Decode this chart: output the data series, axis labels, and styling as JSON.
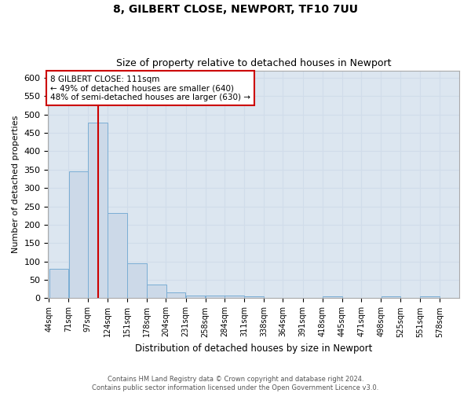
{
  "title": "8, GILBERT CLOSE, NEWPORT, TF10 7UU",
  "subtitle": "Size of property relative to detached houses in Newport",
  "xlabel": "Distribution of detached houses by size in Newport",
  "ylabel": "Number of detached properties",
  "annotation_lines": [
    "8 GILBERT CLOSE: 111sqm",
    "← 49% of detached houses are smaller (640)",
    "48% of semi-detached houses are larger (630) →"
  ],
  "property_size": 111,
  "bin_edges": [
    44,
    71,
    97,
    124,
    151,
    178,
    204,
    231,
    258,
    284,
    311,
    338,
    364,
    391,
    418,
    445,
    471,
    498,
    525,
    551,
    578
  ],
  "bar_heights": [
    80,
    345,
    478,
    233,
    95,
    37,
    16,
    8,
    8,
    8,
    5,
    0,
    0,
    0,
    5,
    0,
    0,
    5,
    0,
    5
  ],
  "bar_color": "#ccd9e8",
  "bar_edge_color": "#7aadd4",
  "redline_color": "#cc0000",
  "annotation_box_edge_color": "#cc0000",
  "grid_color": "#d0dcea",
  "background_color": "#dce6f0",
  "ylim": [
    0,
    620
  ],
  "yticks": [
    0,
    50,
    100,
    150,
    200,
    250,
    300,
    350,
    400,
    450,
    500,
    550,
    600
  ],
  "footer1": "Contains HM Land Registry data © Crown copyright and database right 2024.",
  "footer2": "Contains public sector information licensed under the Open Government Licence v3.0."
}
